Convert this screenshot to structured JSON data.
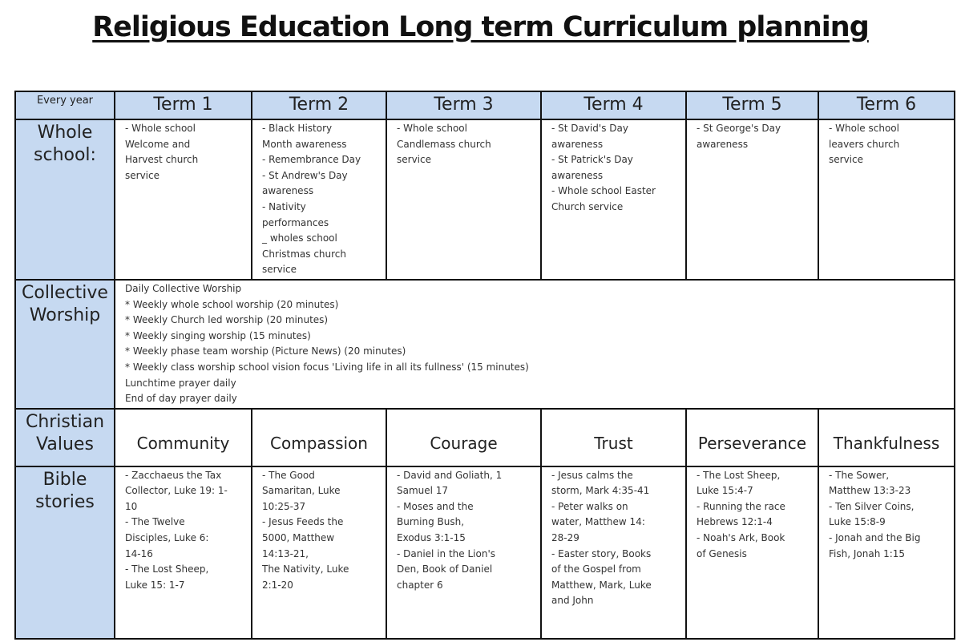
{
  "title": "Religious Education Long term Curriculum planning",
  "colors": {
    "header_bg": "#c6d9f1",
    "border": "#111111"
  },
  "corner_label": "Every year",
  "terms": [
    "Term 1",
    "Term 2",
    "Term 3",
    "Term 4",
    "Term 5",
    "Term 6"
  ],
  "rows": {
    "whole_school": {
      "label": [
        "Whole",
        "school:"
      ],
      "cells": [
        [
          "- Whole school",
          "Welcome and",
          "Harvest church",
          "service"
        ],
        [
          "- Black History",
          "Month awareness",
          "- Remembrance Day",
          "- St Andrew's Day",
          "awareness",
          "- Nativity",
          "performances",
          "_ wholes school",
          "Christmas church",
          "service"
        ],
        [
          "- Whole school",
          "Candlemass church",
          "service"
        ],
        [
          "- St David's Day",
          "awareness",
          "- St Patrick's Day",
          "awareness",
          "- Whole school Easter",
          "Church service"
        ],
        [
          "- St George's Day",
          "awareness"
        ],
        [
          "- Whole school",
          "leavers church",
          "service"
        ]
      ]
    },
    "collective_worship": {
      "label": [
        "Collective",
        "Worship"
      ],
      "lines": [
        "Daily Collective Worship",
        "* Weekly whole school worship (20 minutes)",
        "* Weekly Church led worship (20 minutes)",
        "* Weekly singing worship (15 minutes)",
        "* Weekly phase team worship (Picture News) (20 minutes)",
        "* Weekly class worship school vision focus 'Living life in all its fullness' (15 minutes)",
        "Lunchtime prayer daily",
        "End of day prayer daily"
      ]
    },
    "christian_values": {
      "label": [
        "Christian",
        "Values"
      ],
      "values": [
        "Community",
        "Compassion",
        "Courage",
        "Trust",
        "Perseverance",
        "Thankfulness"
      ]
    },
    "bible_stories": {
      "label": [
        "Bible",
        "stories"
      ],
      "cells": [
        [
          "- Zacchaeus the Tax",
          "Collector, Luke 19: 1-",
          "10",
          "- The Twelve",
          "Disciples, Luke 6:",
          "14-16",
          "- The Lost Sheep,",
          "Luke 15: 1-7"
        ],
        [
          "- The Good",
          "Samaritan, Luke",
          "10:25-37",
          "- Jesus Feeds the",
          "5000, Matthew",
          "14:13-21,",
          "The Nativity, Luke",
          "2:1-20"
        ],
        [
          "- David and Goliath, 1",
          "Samuel 17",
          "- Moses and the",
          "Burning Bush,",
          "Exodus 3:1-15",
          "- Daniel in the Lion's",
          "Den, Book of Daniel",
          "chapter 6"
        ],
        [
          "- Jesus calms the",
          "storm, Mark 4:35-41",
          "- Peter walks on",
          "water, Matthew 14:",
          "28-29",
          "- Easter story, Books",
          "of the Gospel from",
          "Matthew, Mark, Luke",
          "and John"
        ],
        [
          "- The Lost Sheep,",
          "Luke 15:4-7",
          "- Running the race",
          "Hebrews 12:1-4",
          "- Noah's Ark, Book",
          "of Genesis"
        ],
        [
          "- The Sower,",
          "Matthew 13:3-23",
          "- Ten Silver Coins,",
          "Luke 15:8-9",
          "- Jonah and the Big",
          "Fish, Jonah 1:15"
        ]
      ]
    }
  }
}
